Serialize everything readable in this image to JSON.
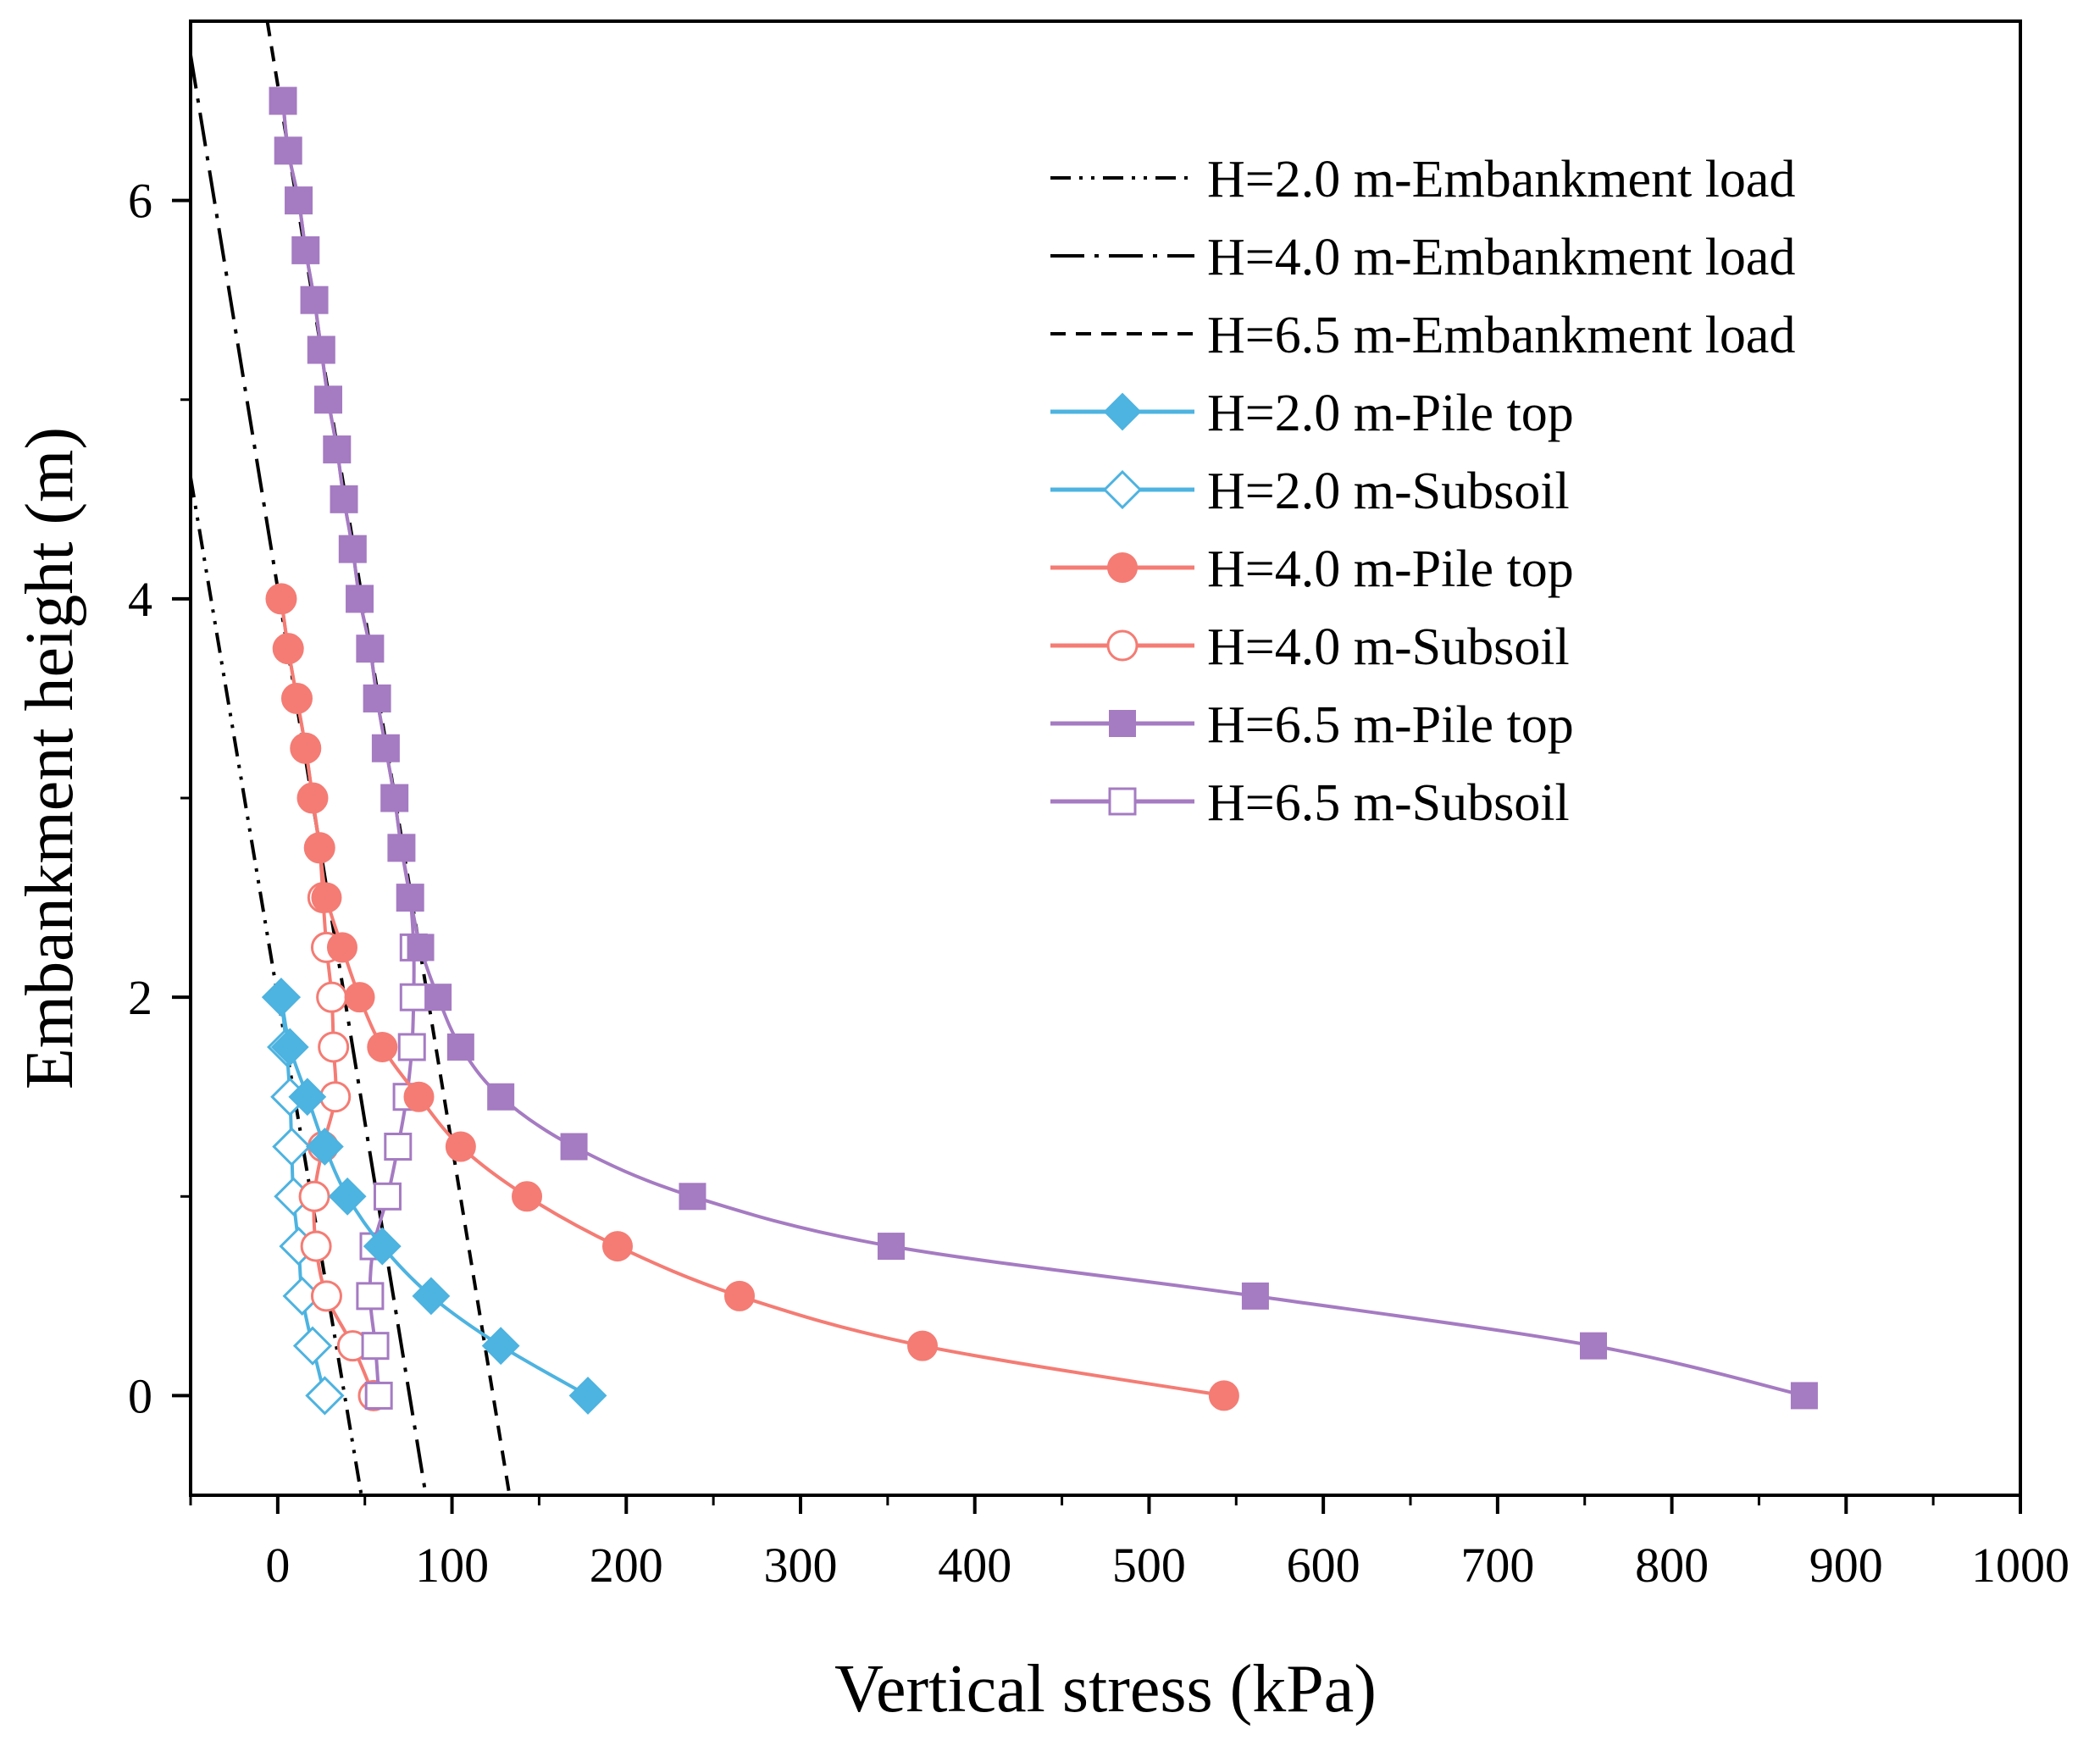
{
  "chart_data": {
    "type": "line",
    "xlabel": "Vertical stress (kPa)",
    "ylabel": "Embankment height (m)",
    "xlim": [
      -50,
      1000
    ],
    "ylim": [
      -0.5,
      6.9
    ],
    "x_ticks": [
      0,
      100,
      200,
      300,
      400,
      500,
      600,
      700,
      800,
      900,
      1000
    ],
    "x_tick_labels": [
      "0",
      "100",
      "200",
      "300",
      "400",
      "500",
      "600",
      "700",
      "800",
      "900",
      "1000"
    ],
    "y_ticks": [
      0,
      2,
      4,
      6
    ],
    "y_tick_labels": [
      "0",
      "2",
      "4",
      "6"
    ],
    "grid": false,
    "legend_position": "top-right",
    "series": [
      {
        "name": "H=2.0 m-Embankment load",
        "kind": "load",
        "dash": "dash-dot-dot",
        "color": "#000000",
        "x": [
          -50,
          48
        ],
        "y": [
          4.61,
          -0.5
        ]
      },
      {
        "name": "H=4.0 m-Embankment load",
        "kind": "load",
        "dash": "dash-dot",
        "color": "#000000",
        "x": [
          -50,
          85
        ],
        "y": [
          6.73,
          -0.5
        ]
      },
      {
        "name": "H=6.5 m-Embankment load",
        "kind": "load",
        "dash": "dash",
        "color": "#000000",
        "x": [
          -6,
          133
        ],
        "y": [
          6.9,
          -0.5
        ]
      },
      {
        "name": "H=2.0 m-Pile top",
        "marker": "diamond",
        "filled": true,
        "color": "#4DB3E0",
        "x": [
          2,
          7,
          17,
          27,
          40,
          60,
          88,
          128,
          178
        ],
        "y": [
          2.0,
          1.75,
          1.5,
          1.25,
          1.0,
          0.75,
          0.5,
          0.25,
          0.0
        ]
      },
      {
        "name": "H=2.0 m-Subsoil",
        "marker": "diamond",
        "filled": false,
        "color": "#4DB3E0",
        "x": [
          2,
          5,
          7,
          8,
          9,
          12,
          14,
          20,
          27
        ],
        "y": [
          2.0,
          1.75,
          1.5,
          1.25,
          1.0,
          0.75,
          0.5,
          0.25,
          0.0
        ]
      },
      {
        "name": "H=4.0 m-Pile top",
        "marker": "circle",
        "filled": true,
        "color": "#F47C74",
        "x": [
          2,
          6,
          11,
          16,
          20,
          24,
          28,
          37,
          47,
          60,
          81,
          105,
          143,
          195,
          265,
          370,
          543
        ],
        "y": [
          4.0,
          3.75,
          3.5,
          3.25,
          3.0,
          2.75,
          2.5,
          2.25,
          2.0,
          1.75,
          1.5,
          1.25,
          1.0,
          0.75,
          0.5,
          0.25,
          0.0
        ]
      },
      {
        "name": "H=4.0 m-Subsoil",
        "marker": "circle",
        "filled": false,
        "color": "#F47C74",
        "x": [
          2,
          6,
          11,
          16,
          20,
          24,
          26,
          28,
          31,
          32,
          33,
          26,
          21,
          22,
          28,
          43,
          55
        ],
        "y": [
          4.0,
          3.75,
          3.5,
          3.25,
          3.0,
          2.75,
          2.5,
          2.25,
          2.0,
          1.75,
          1.5,
          1.25,
          1.0,
          0.75,
          0.5,
          0.25,
          0.0
        ]
      },
      {
        "name": "H=6.5 m-Pile top",
        "marker": "square",
        "filled": true,
        "color": "#A57BC2",
        "x": [
          3,
          6,
          12,
          16,
          21,
          25,
          29,
          34,
          38,
          43,
          47,
          53,
          57,
          62,
          67,
          71,
          76,
          82,
          92,
          105,
          128,
          170,
          238,
          352,
          561,
          755,
          876
        ],
        "y": [
          6.5,
          6.25,
          6.0,
          5.75,
          5.5,
          5.25,
          5.0,
          4.75,
          4.5,
          4.25,
          4.0,
          3.75,
          3.5,
          3.25,
          3.0,
          2.75,
          2.5,
          2.25,
          2.0,
          1.75,
          1.5,
          1.25,
          1.0,
          0.75,
          0.5,
          0.25,
          0.0
        ]
      },
      {
        "name": "H=6.5 m-Subsoil",
        "marker": "square",
        "filled": false,
        "color": "#A57BC2",
        "x": [
          3,
          6,
          12,
          16,
          21,
          25,
          29,
          34,
          38,
          43,
          47,
          53,
          57,
          62,
          67,
          71,
          76,
          78,
          78,
          77,
          74,
          69,
          63,
          55,
          53,
          56,
          58
        ],
        "y": [
          6.5,
          6.25,
          6.0,
          5.75,
          5.5,
          5.25,
          5.0,
          4.75,
          4.5,
          4.25,
          4.0,
          3.75,
          3.5,
          3.25,
          3.0,
          2.75,
          2.5,
          2.25,
          2.0,
          1.75,
          1.5,
          1.25,
          1.0,
          0.75,
          0.5,
          0.25,
          0.0
        ]
      }
    ]
  }
}
